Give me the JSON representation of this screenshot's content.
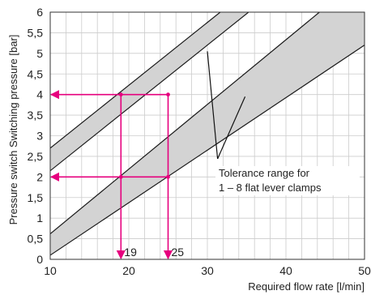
{
  "chart_data": {
    "type": "area",
    "title": "",
    "xlabel": "Required flow rate [l/min]",
    "ylabel": "Pressure switch Switching pressure [bar]",
    "xlim": [
      10,
      50
    ],
    "ylim": [
      0,
      6
    ],
    "x_ticks": [
      10,
      20,
      30,
      40,
      50
    ],
    "y_ticks": [
      0,
      0.5,
      1,
      1.5,
      2,
      2.5,
      3,
      3.5,
      4,
      4.5,
      5,
      5.5,
      6
    ],
    "y_tick_labels": [
      "0",
      "0,5",
      "1",
      "1,5",
      "2",
      "2,5",
      "3",
      "3,5",
      "4",
      "4,5",
      "5",
      "5,5",
      "6"
    ],
    "grid": true,
    "colors": {
      "band_fill": "#d3d3d3",
      "band_edge": "#1a1a1a",
      "guide": "#e6007e",
      "grid": "#cccccc"
    },
    "series": [
      {
        "lower": [
          [
            10,
            2.15
          ],
          [
            50,
            8.25
          ]
        ],
        "upper": [
          [
            10,
            2.7
          ],
          [
            50,
            8.8
          ]
        ]
      },
      {
        "lower": [
          [
            10,
            0.1
          ],
          [
            50,
            5.2
          ]
        ],
        "upper": [
          [
            10,
            0.62
          ],
          [
            50,
            6.9
          ]
        ]
      }
    ],
    "guides": [
      {
        "x": 19,
        "y": 4,
        "label": "19"
      },
      {
        "x": 25,
        "y": 4
      },
      {
        "x": 19,
        "y": 2
      },
      {
        "x": 25,
        "y": 2,
        "label": "25"
      }
    ],
    "annotation": {
      "lines": [
        "Tolerance range for",
        "1 – 8 flat lever clamps"
      ],
      "pointers": [
        [
          30,
          5.05
        ],
        [
          34.8,
          3.95
        ]
      ]
    }
  }
}
